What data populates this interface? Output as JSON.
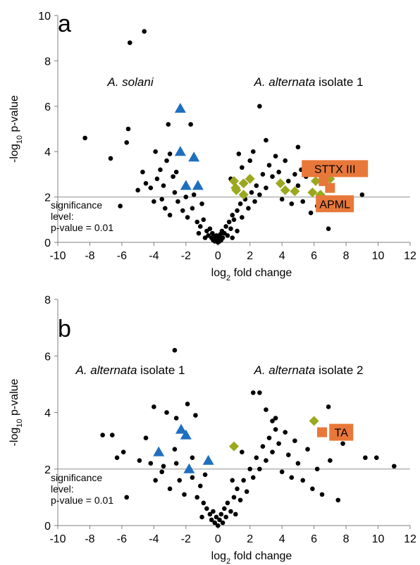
{
  "chart_data": [
    {
      "type": "scatter",
      "panel_label": "a",
      "xlabel": {
        "prefix": "log",
        "sub": "2",
        "suffix": " fold change"
      },
      "ylabel": {
        "prefix": "-log",
        "sub": "10",
        "suffix": " p-value"
      },
      "xlim": [
        -10,
        12
      ],
      "ylim": [
        0,
        10
      ],
      "xticks": [
        -10,
        -8,
        -6,
        -4,
        -2,
        0,
        2,
        4,
        6,
        8,
        10,
        12
      ],
      "yticks": [
        0,
        2,
        4,
        6,
        8,
        10
      ],
      "significance_line": 2,
      "significance_text": [
        "significance",
        "level:",
        "p-value = 0.01"
      ],
      "group_labels": {
        "left": {
          "italic": "A. solani",
          "plain": ""
        },
        "right": {
          "italic": "A. alternata",
          "plain": " isolate 1"
        }
      },
      "colors": {
        "points": "#000000",
        "triangles": "#1f6fbf",
        "diamonds": "#9aa81e",
        "squares": "#e8783a",
        "sigline": "#a6a6a6"
      },
      "highlight_labels": [
        {
          "text": "STTX III",
          "x": 7.3,
          "y": 3.25
        },
        {
          "text": "APML",
          "x": 7.3,
          "y": 1.7
        }
      ],
      "triangles": [
        [
          -2.35,
          5.9
        ],
        [
          -2.35,
          4.0
        ],
        [
          -1.5,
          3.75
        ],
        [
          -2.0,
          2.5
        ],
        [
          -1.25,
          2.5
        ]
      ],
      "diamonds": [
        [
          1.0,
          2.7
        ],
        [
          1.1,
          2.4
        ],
        [
          1.15,
          2.3
        ],
        [
          1.6,
          2.1
        ],
        [
          1.6,
          2.6
        ],
        [
          2.0,
          2.8
        ],
        [
          3.9,
          2.6
        ],
        [
          4.2,
          2.3
        ],
        [
          4.8,
          2.25
        ],
        [
          5.9,
          2.2
        ],
        [
          6.1,
          2.7
        ],
        [
          6.4,
          2.1
        ],
        [
          7.0,
          2.8
        ]
      ],
      "squares": [
        [
          6.6,
          2.7
        ],
        [
          7.0,
          2.4
        ]
      ],
      "points": [
        [
          -5.5,
          8.8
        ],
        [
          -4.6,
          9.3
        ],
        [
          -8.3,
          4.6
        ],
        [
          -6.7,
          3.7
        ],
        [
          -6.1,
          1.6
        ],
        [
          -5.7,
          4.4
        ],
        [
          -5.6,
          5.0
        ],
        [
          -3.1,
          5.2
        ],
        [
          -1.7,
          5.2
        ],
        [
          2.6,
          6.0
        ],
        [
          5.2,
          3.2
        ],
        [
          5.0,
          4.2
        ],
        [
          9.0,
          2.1
        ],
        [
          8.0,
          1.6
        ],
        [
          6.9,
          0.6
        ],
        [
          -3.9,
          4.0
        ],
        [
          -3.6,
          3.2
        ],
        [
          -3.2,
          3.6
        ],
        [
          -3.0,
          3.9
        ],
        [
          -2.8,
          2.9
        ],
        [
          -2.6,
          3.1
        ],
        [
          -4.2,
          2.4
        ],
        [
          -4.5,
          2.6
        ],
        [
          -4.7,
          3.1
        ],
        [
          -3.8,
          2.8
        ],
        [
          -3.4,
          2.5
        ],
        [
          -5.0,
          2.3
        ],
        [
          -3.3,
          1.5
        ],
        [
          -3.0,
          1.2
        ],
        [
          -2.5,
          1.8
        ],
        [
          -2.2,
          1.4
        ],
        [
          -1.9,
          1.1
        ],
        [
          -1.6,
          1.5
        ],
        [
          -1.3,
          0.9
        ],
        [
          -1.1,
          0.7
        ],
        [
          -0.9,
          1.0
        ],
        [
          -0.7,
          0.5
        ],
        [
          -0.6,
          0.3
        ],
        [
          -0.5,
          0.6
        ],
        [
          -0.4,
          0.2
        ],
        [
          -0.35,
          0.4
        ],
        [
          -0.3,
          0.1
        ],
        [
          -0.25,
          0.25
        ],
        [
          -0.2,
          0.05
        ],
        [
          -0.15,
          0.15
        ],
        [
          -0.1,
          0.3
        ],
        [
          -0.05,
          0.1
        ],
        [
          0.0,
          0.0
        ],
        [
          0.05,
          0.2
        ],
        [
          0.1,
          0.05
        ],
        [
          0.15,
          0.35
        ],
        [
          0.2,
          0.1
        ],
        [
          0.25,
          0.5
        ],
        [
          0.3,
          0.2
        ],
        [
          0.4,
          0.4
        ],
        [
          0.5,
          0.7
        ],
        [
          0.6,
          0.3
        ],
        [
          0.7,
          0.9
        ],
        [
          0.8,
          0.6
        ],
        [
          0.9,
          1.2
        ],
        [
          1.0,
          1.0
        ],
        [
          1.2,
          1.4
        ],
        [
          1.4,
          1.7
        ],
        [
          1.5,
          1.1
        ],
        [
          1.7,
          1.9
        ],
        [
          1.9,
          1.5
        ],
        [
          2.1,
          2.2
        ],
        [
          2.3,
          1.8
        ],
        [
          2.4,
          2.5
        ],
        [
          2.6,
          2.1
        ],
        [
          2.8,
          3.0
        ],
        [
          3.0,
          2.4
        ],
        [
          3.2,
          3.4
        ],
        [
          3.4,
          2.9
        ],
        [
          3.6,
          3.8
        ],
        [
          3.8,
          3.1
        ],
        [
          4.0,
          1.9
        ],
        [
          4.2,
          3.6
        ],
        [
          4.4,
          2.7
        ],
        [
          4.6,
          1.7
        ],
        [
          4.8,
          3.0
        ],
        [
          5.0,
          2.5
        ],
        [
          5.3,
          1.8
        ],
        [
          5.5,
          2.9
        ],
        [
          5.8,
          1.3
        ],
        [
          6.2,
          1.6
        ],
        [
          2.0,
          3.6
        ],
        [
          1.5,
          3.3
        ],
        [
          0.8,
          2.8
        ],
        [
          3.0,
          4.5
        ],
        [
          2.2,
          4.0
        ],
        [
          1.3,
          3.9
        ],
        [
          -1.0,
          1.7
        ],
        [
          -1.5,
          2.1
        ],
        [
          -2.0,
          2.0
        ],
        [
          -2.7,
          2.2
        ],
        [
          -3.5,
          1.9
        ],
        [
          -4.0,
          1.8
        ],
        [
          -0.8,
          0.2
        ],
        [
          0.9,
          0.2
        ],
        [
          -1.2,
          0.4
        ],
        [
          1.2,
          0.5
        ]
      ]
    },
    {
      "type": "scatter",
      "panel_label": "b",
      "xlabel": {
        "prefix": "log",
        "sub": "2",
        "suffix": " fold change"
      },
      "ylabel": {
        "prefix": "-log",
        "sub": "10",
        "suffix": " p-value"
      },
      "xlim": [
        -10,
        12
      ],
      "ylim": [
        0,
        8
      ],
      "xticks": [
        -10,
        -8,
        -6,
        -4,
        -2,
        0,
        2,
        4,
        6,
        8,
        10,
        12
      ],
      "yticks": [
        0,
        2,
        4,
        6,
        8
      ],
      "significance_line": 2,
      "significance_text": [
        "significance",
        "level:",
        "p-value = 0.01"
      ],
      "group_labels": {
        "left": {
          "italic": "A. alternata",
          "plain": " isolate 1"
        },
        "right": {
          "italic": "A. alternata",
          "plain": " isolate 2"
        }
      },
      "colors": {
        "points": "#000000",
        "triangles": "#1f6fbf",
        "diamonds": "#9aa81e",
        "squares": "#e8783a",
        "sigline": "#a6a6a6"
      },
      "highlight_labels": [
        {
          "text": "TA",
          "x": 7.7,
          "y": 3.3
        }
      ],
      "triangles": [
        [
          -3.7,
          2.6
        ],
        [
          -2.3,
          3.4
        ],
        [
          -2.0,
          3.2
        ],
        [
          -1.8,
          2.0
        ],
        [
          -0.6,
          2.3
        ]
      ],
      "diamonds": [
        [
          1.0,
          2.8
        ],
        [
          6.0,
          3.7
        ]
      ],
      "squares": [
        [
          6.5,
          3.3
        ]
      ],
      "points": [
        [
          -2.7,
          6.2
        ],
        [
          -7.2,
          3.2
        ],
        [
          -6.6,
          3.2
        ],
        [
          -6.3,
          2.4
        ],
        [
          -5.9,
          2.6
        ],
        [
          -5.7,
          1.0
        ],
        [
          -4.0,
          4.2
        ],
        [
          -3.2,
          4.0
        ],
        [
          -2.6,
          3.8
        ],
        [
          -1.9,
          4.3
        ],
        [
          -1.4,
          3.9
        ],
        [
          -4.5,
          3.1
        ],
        [
          -4.2,
          2.2
        ],
        [
          -3.9,
          1.6
        ],
        [
          -3.5,
          1.9
        ],
        [
          -3.0,
          1.3
        ],
        [
          -2.7,
          2.7
        ],
        [
          -2.4,
          1.6
        ],
        [
          -2.1,
          1.1
        ],
        [
          -1.6,
          1.7
        ],
        [
          -1.3,
          1.0
        ],
        [
          -1.1,
          1.4
        ],
        [
          -0.9,
          0.8
        ],
        [
          -0.7,
          0.6
        ],
        [
          -0.5,
          0.4
        ],
        [
          -0.4,
          0.2
        ],
        [
          -0.3,
          0.5
        ],
        [
          -0.2,
          0.1
        ],
        [
          -0.1,
          0.3
        ],
        [
          0.0,
          0.0
        ],
        [
          0.1,
          0.2
        ],
        [
          0.2,
          0.4
        ],
        [
          0.3,
          0.1
        ],
        [
          0.4,
          0.6
        ],
        [
          0.5,
          0.3
        ],
        [
          0.6,
          0.8
        ],
        [
          0.8,
          0.5
        ],
        [
          1.0,
          1.0
        ],
        [
          1.2,
          1.3
        ],
        [
          1.4,
          0.9
        ],
        [
          1.6,
          1.6
        ],
        [
          1.8,
          1.2
        ],
        [
          2.0,
          2.0
        ],
        [
          2.2,
          1.7
        ],
        [
          2.4,
          2.4
        ],
        [
          2.6,
          2.0
        ],
        [
          2.8,
          2.8
        ],
        [
          3.0,
          2.3
        ],
        [
          3.2,
          3.1
        ],
        [
          3.4,
          2.6
        ],
        [
          3.6,
          3.4
        ],
        [
          3.8,
          2.9
        ],
        [
          4.0,
          1.9
        ],
        [
          4.2,
          3.3
        ],
        [
          4.4,
          2.5
        ],
        [
          4.6,
          1.7
        ],
        [
          4.8,
          3.0
        ],
        [
          5.0,
          2.2
        ],
        [
          5.3,
          1.6
        ],
        [
          5.6,
          2.7
        ],
        [
          5.9,
          1.3
        ],
        [
          6.2,
          2.0
        ],
        [
          6.5,
          1.1
        ],
        [
          7.0,
          2.3
        ],
        [
          7.5,
          0.9
        ],
        [
          7.8,
          2.9
        ],
        [
          2.2,
          4.7
        ],
        [
          2.6,
          4.7
        ],
        [
          3.6,
          3.8
        ],
        [
          3.0,
          4.1
        ],
        [
          6.9,
          4.2
        ],
        [
          9.2,
          2.4
        ],
        [
          9.9,
          2.4
        ],
        [
          11.0,
          2.1
        ],
        [
          -1.6,
          2.4
        ],
        [
          -2.6,
          2.2
        ],
        [
          -3.4,
          2.1
        ],
        [
          -4.9,
          2.3
        ],
        [
          -0.8,
          1.8
        ],
        [
          0.9,
          1.6
        ],
        [
          1.5,
          2.6
        ],
        [
          3.4,
          3.7
        ],
        [
          -1.0,
          0.3
        ],
        [
          1.1,
          0.4
        ]
      ]
    }
  ]
}
